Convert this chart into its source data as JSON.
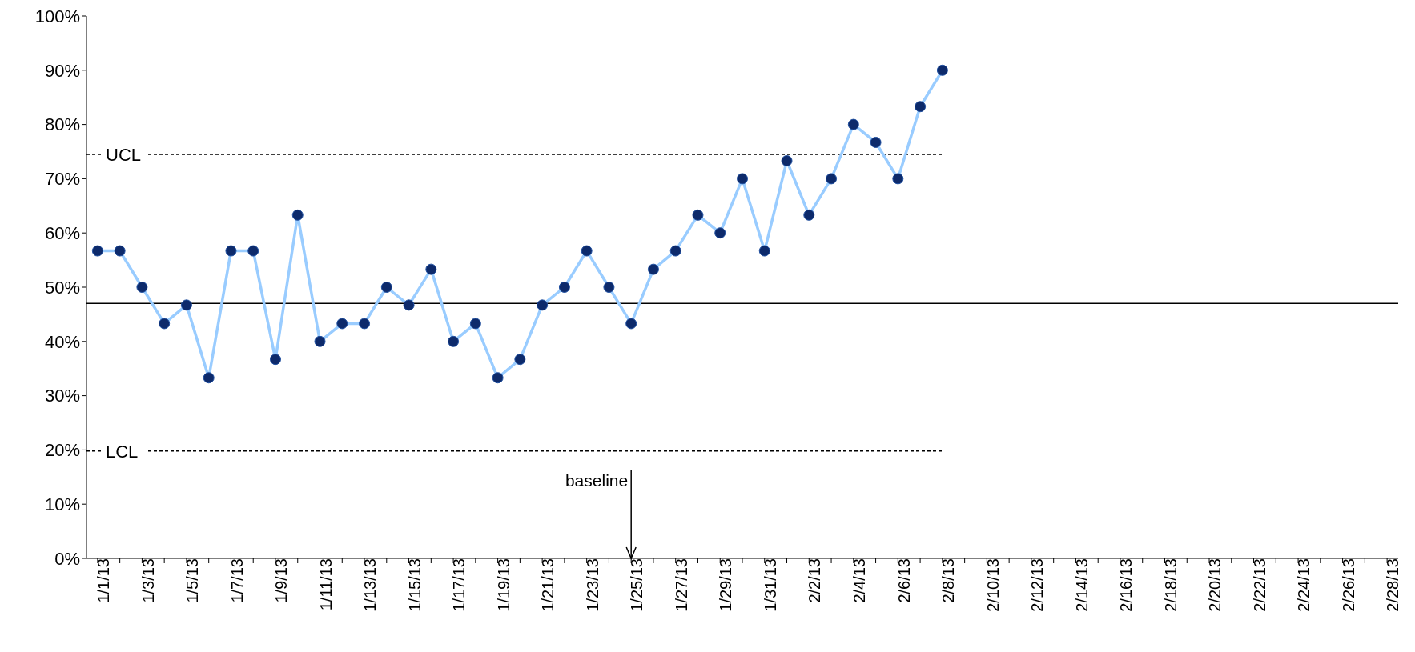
{
  "chart_data": {
    "type": "line",
    "categories": [
      "1/1/13",
      null,
      "1/3/13",
      null,
      "1/5/13",
      null,
      "1/7/13",
      null,
      "1/9/13",
      null,
      "1/11/13",
      null,
      "1/13/13",
      null,
      "1/15/13",
      null,
      "1/17/13",
      null,
      "1/19/13",
      null,
      "1/21/13",
      null,
      "1/23/13",
      null,
      "1/25/13",
      null,
      "1/27/13",
      null,
      "1/29/13",
      null,
      "1/31/13",
      null,
      "2/2/13",
      null,
      "2/4/13",
      null,
      "2/6/13",
      null,
      "2/8/13",
      null,
      "2/10/13",
      null,
      "2/12/13",
      null,
      "2/14/13",
      null,
      "2/16/13",
      null,
      "2/18/13",
      null,
      "2/20/13",
      null,
      "2/22/13",
      null,
      "2/24/13",
      null,
      "2/26/13",
      null,
      "2/28/13"
    ],
    "series": [
      {
        "color": "#99ccff",
        "values": [
          56.7,
          56.7,
          50,
          43.3,
          46.7,
          33.3,
          56.7,
          56.7,
          36.7,
          63.3,
          40,
          43.3,
          43.3,
          50,
          46.7,
          53.3,
          40,
          43.3,
          33.3,
          36.7,
          46.7,
          50,
          56.7,
          50,
          43.3,
          53.3,
          56.7,
          63.3,
          60,
          70,
          56.7,
          73.3,
          63.3,
          70,
          80,
          76.7,
          70,
          83.3,
          90,
          null,
          null,
          null,
          null,
          null,
          null,
          null,
          null,
          null,
          null,
          null,
          null,
          null,
          null,
          null,
          null,
          null,
          null,
          null,
          null
        ]
      }
    ],
    "ylim": [
      0,
      100
    ],
    "yticks": [
      {
        "value": 0,
        "label": "0%"
      },
      {
        "value": 10,
        "label": "10%"
      },
      {
        "value": 20,
        "label": "20%"
      },
      {
        "value": 30,
        "label": "30%"
      },
      {
        "value": 40,
        "label": "40%"
      },
      {
        "value": 50,
        "label": "50%"
      },
      {
        "value": 60,
        "label": "60%"
      },
      {
        "value": 70,
        "label": "70%"
      },
      {
        "value": 80,
        "label": "80%"
      },
      {
        "value": 90,
        "label": "90%"
      },
      {
        "value": 100,
        "label": "100%"
      }
    ],
    "ref_lines": [
      {
        "axis": "y",
        "value": 47,
        "label": null,
        "color": "#000000",
        "line_style": "solid"
      },
      {
        "axis": "y",
        "value": 74.5,
        "label": "UCL",
        "color": "#000000",
        "line_style": "dashed"
      },
      {
        "axis": "y",
        "value": 19.8,
        "label": "LCL",
        "color": "#000000",
        "line_style": "dashed"
      },
      {
        "axis": "x",
        "value": "1/25/13",
        "label": "baseline",
        "color": "#000000",
        "line_style": "solid"
      }
    ],
    "marker": "circle",
    "line_style": "solid"
  }
}
